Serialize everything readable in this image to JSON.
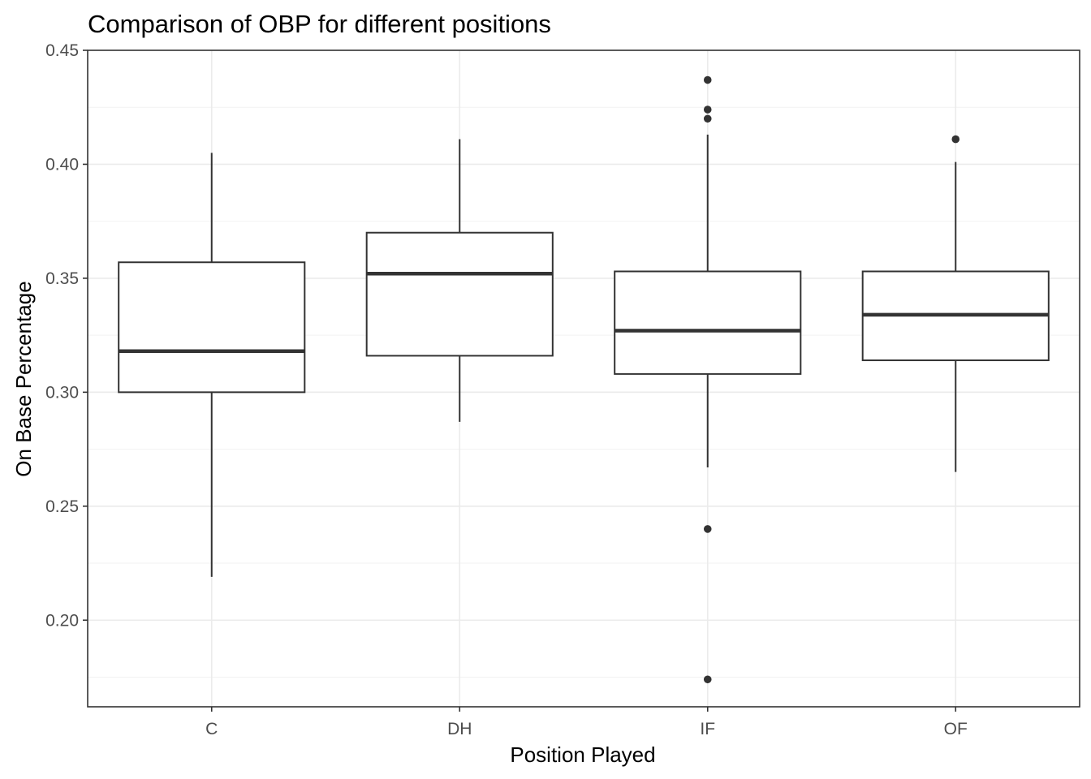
{
  "chart_data": {
    "type": "boxplot",
    "title": "Comparison of OBP for different positions",
    "xlabel": "Position Played",
    "ylabel": "On Base Percentage",
    "ylim": [
      0.162,
      0.45
    ],
    "yticks": [
      "0.20",
      "0.25",
      "0.30",
      "0.35",
      "0.40",
      "0.45"
    ],
    "ytick_values": [
      0.2,
      0.25,
      0.3,
      0.35,
      0.4,
      0.45
    ],
    "grid": true,
    "categories": [
      "C",
      "DH",
      "IF",
      "OF"
    ],
    "boxes": [
      {
        "category": "C",
        "min": 0.219,
        "q1": 0.3,
        "median": 0.318,
        "q3": 0.357,
        "max": 0.405,
        "outliers": []
      },
      {
        "category": "DH",
        "min": 0.287,
        "q1": 0.316,
        "median": 0.352,
        "q3": 0.37,
        "max": 0.411,
        "outliers": []
      },
      {
        "category": "IF",
        "min": 0.267,
        "q1": 0.308,
        "median": 0.327,
        "q3": 0.353,
        "max": 0.413,
        "outliers": [
          0.437,
          0.424,
          0.42,
          0.24,
          0.174
        ]
      },
      {
        "category": "OF",
        "min": 0.265,
        "q1": 0.314,
        "median": 0.334,
        "q3": 0.353,
        "max": 0.401,
        "outliers": [
          0.411
        ]
      }
    ],
    "colors": {
      "stroke": "#333333",
      "box_fill": "#ffffff",
      "grid": "#ebebeb"
    }
  }
}
